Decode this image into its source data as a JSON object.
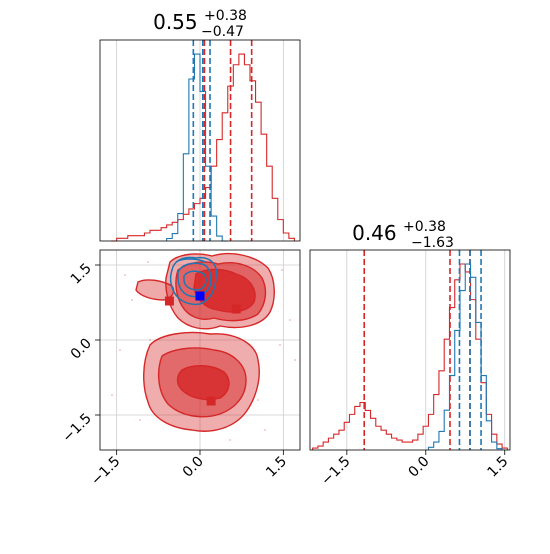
{
  "colors": {
    "red": "#d62728",
    "blue": "#1f77b4",
    "grid": "#cccccc",
    "axis": "#000000"
  },
  "chart_data": [
    {
      "type": "histogram",
      "panel": "top-left",
      "title_value": "0.55",
      "title_plus": "+0.38",
      "title_minus": "−0.47",
      "xlim": [
        -1.8,
        1.8
      ],
      "grid": true,
      "series": [
        {
          "color": "#d62728",
          "x": [
            -1.55,
            -1.45,
            -1.35,
            -1.25,
            -1.15,
            -1.05,
            -0.95,
            -0.85,
            -0.75,
            -0.65,
            -0.55,
            -0.45,
            -0.35,
            -0.25,
            -0.15,
            -0.05,
            0.05,
            0.15,
            0.25,
            0.35,
            0.45,
            0.55,
            0.65,
            0.75,
            0.85,
            0.95,
            1.05,
            1.15,
            1.25,
            1.35,
            1.45,
            1.55,
            1.65
          ],
          "values": [
            0,
            1,
            1,
            2,
            2,
            2,
            3,
            4,
            4,
            5,
            6,
            7,
            8,
            10,
            12,
            14,
            16,
            20,
            28,
            38,
            48,
            58,
            66,
            70,
            66,
            60,
            52,
            40,
            28,
            16,
            8,
            3,
            1
          ],
          "quantiles": [
            0.08,
            0.55,
            0.93
          ]
        },
        {
          "color": "#1f77b4",
          "x": [
            -0.55,
            -0.45,
            -0.35,
            -0.25,
            -0.15,
            -0.05,
            0.05,
            0.15,
            0.25,
            0.35,
            0.45
          ],
          "values": [
            2,
            6,
            22,
            70,
            130,
            150,
            120,
            60,
            20,
            4,
            0
          ],
          "quantiles": [
            -0.12,
            0.05,
            0.18
          ]
        }
      ]
    },
    {
      "type": "contour",
      "panel": "bottom-left",
      "xlim": [
        -1.8,
        1.8
      ],
      "ylim": [
        -2.2,
        1.8
      ],
      "xticks": [
        "−1.5",
        "0.0",
        "1.5"
      ],
      "yticks": [
        "−1.5",
        "0.0",
        "1.5"
      ],
      "grid": true,
      "markers": [
        {
          "x": -0.55,
          "y": 0.78,
          "color": "#d62728"
        },
        {
          "x": 0.65,
          "y": 0.62,
          "color": "#d62728"
        },
        {
          "x": 0.2,
          "y": -1.22,
          "color": "#d62728"
        },
        {
          "x": 0.0,
          "y": 0.88,
          "color": "#0000ff"
        }
      ]
    },
    {
      "type": "histogram",
      "panel": "bottom-right",
      "title_value": "0.46",
      "title_plus": "+0.38",
      "title_minus": "−1.63",
      "xlim": [
        -2.2,
        1.6
      ],
      "xticks": [
        "−1.5",
        "0.0",
        "1.5"
      ],
      "grid": true,
      "series": [
        {
          "color": "#d62728",
          "x": [
            -2.1,
            -2.0,
            -1.9,
            -1.8,
            -1.7,
            -1.6,
            -1.5,
            -1.4,
            -1.3,
            -1.2,
            -1.1,
            -1.0,
            -0.9,
            -0.8,
            -0.7,
            -0.6,
            -0.5,
            -0.4,
            -0.3,
            -0.2,
            -0.1,
            0.0,
            0.1,
            0.2,
            0.3,
            0.4,
            0.5,
            0.6,
            0.7,
            0.8,
            0.9,
            1.0,
            1.1,
            1.2,
            1.3,
            1.4,
            1.5
          ],
          "values": [
            1,
            2,
            4,
            6,
            8,
            10,
            14,
            18,
            22,
            24,
            20,
            16,
            12,
            10,
            8,
            6,
            5,
            4,
            4,
            5,
            8,
            12,
            18,
            28,
            40,
            56,
            72,
            86,
            94,
            90,
            76,
            56,
            34,
            18,
            8,
            3,
            1
          ],
          "quantiles": [
            -1.17,
            0.46,
            0.84
          ]
        },
        {
          "color": "#1f77b4",
          "x": [
            0.1,
            0.2,
            0.3,
            0.4,
            0.5,
            0.6,
            0.7,
            0.8,
            0.9,
            1.0,
            1.1,
            1.2,
            1.3,
            1.4
          ],
          "values": [
            2,
            6,
            14,
            30,
            56,
            90,
            120,
            140,
            130,
            96,
            56,
            22,
            6,
            1
          ],
          "quantiles": [
            0.64,
            0.84,
            1.05
          ]
        }
      ]
    }
  ]
}
